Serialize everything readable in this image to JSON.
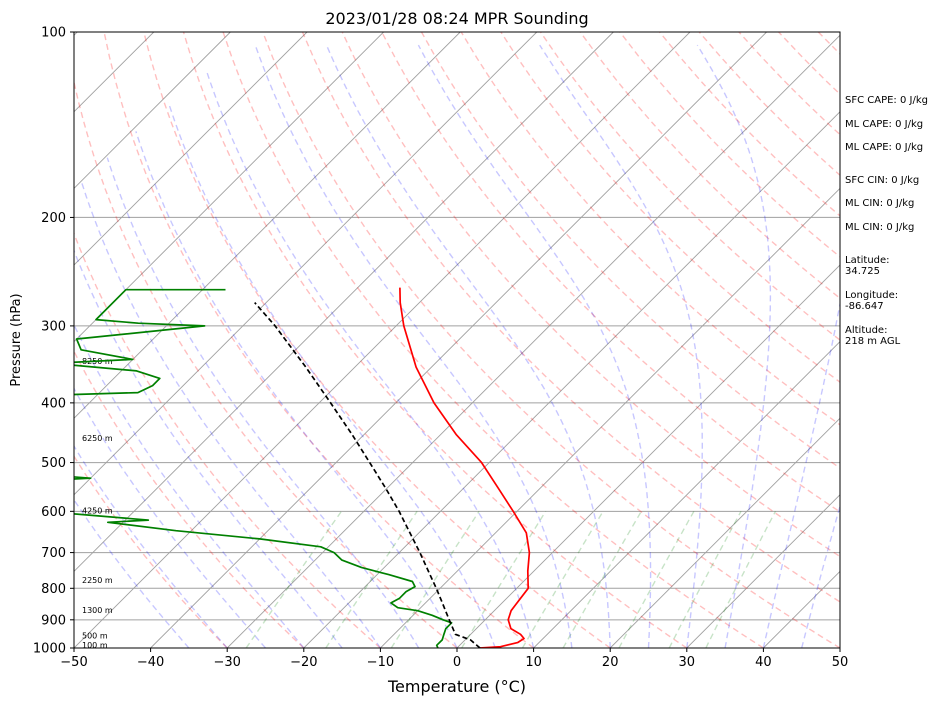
{
  "chart_data": {
    "type": "line",
    "title": "2023/01/28 08:24 MPR Sounding",
    "xlabel": "Temperature (°C)",
    "ylabel": "Pressure (hPa)",
    "xlim": [
      -50,
      50
    ],
    "ylim": [
      1000,
      100
    ],
    "y_scale": "log",
    "grid": true,
    "x_ticks": [
      -50,
      -40,
      -30,
      -20,
      -10,
      0,
      10,
      20,
      30,
      40,
      50
    ],
    "x_tick_labels": [
      "−50",
      "−40",
      "−30",
      "−20",
      "−10",
      "0",
      "10",
      "20",
      "30",
      "40",
      "50"
    ],
    "y_ticks": [
      100,
      200,
      300,
      400,
      500,
      600,
      700,
      800,
      900,
      1000
    ],
    "y_tick_labels": [
      "100",
      "200",
      "300",
      "400",
      "500",
      "600",
      "700",
      "800",
      "900",
      "1000"
    ],
    "series": [
      {
        "role": "temperature",
        "color": "#ff0000",
        "points": [
          [
            1000,
            3.0
          ],
          [
            995,
            5.5
          ],
          [
            980,
            7.2
          ],
          [
            965,
            7.5
          ],
          [
            950,
            6.5
          ],
          [
            930,
            4.5
          ],
          [
            900,
            3.0
          ],
          [
            870,
            2.2
          ],
          [
            850,
            2.0
          ],
          [
            800,
            1.5
          ],
          [
            750,
            -0.8
          ],
          [
            700,
            -3.0
          ],
          [
            650,
            -6.0
          ],
          [
            600,
            -10.5
          ],
          [
            550,
            -15.5
          ],
          [
            500,
            -21.0
          ],
          [
            450,
            -28.0
          ],
          [
            400,
            -35.0
          ],
          [
            350,
            -42.0
          ],
          [
            300,
            -49.0
          ],
          [
            275,
            -52.5
          ],
          [
            260,
            -54.5
          ]
        ]
      },
      {
        "role": "dewpoint",
        "color": "#008000",
        "points": [
          [
            1000,
            -2.5
          ],
          [
            990,
            -3.0
          ],
          [
            970,
            -3.0
          ],
          [
            950,
            -3.5
          ],
          [
            930,
            -4.0
          ],
          [
            910,
            -4.0
          ],
          [
            900,
            -5.5
          ],
          [
            885,
            -7.5
          ],
          [
            870,
            -10.0
          ],
          [
            860,
            -13.0
          ],
          [
            845,
            -14.5
          ],
          [
            830,
            -14.0
          ],
          [
            810,
            -14.0
          ],
          [
            795,
            -13.5
          ],
          [
            780,
            -14.5
          ],
          [
            760,
            -18.5
          ],
          [
            740,
            -23.0
          ],
          [
            720,
            -26.5
          ],
          [
            700,
            -28.5
          ],
          [
            685,
            -31.0
          ],
          [
            665,
            -40.0
          ],
          [
            645,
            -52.0
          ],
          [
            625,
            -62.0
          ],
          [
            620,
            -57.0
          ],
          [
            605,
            -68.0
          ],
          [
            580,
            -78.0
          ],
          [
            560,
            -90.0
          ],
          [
            545,
            -90.0
          ],
          [
            530,
            -70.0
          ],
          [
            515,
            -84.0
          ],
          [
            510,
            -90.0
          ],
          [
            390,
            -90.0
          ],
          [
            385,
            -75.0
          ],
          [
            375,
            -74.0
          ],
          [
            365,
            -74.0
          ],
          [
            355,
            -78.0
          ],
          [
            345,
            -90.0
          ],
          [
            340,
            -80.0
          ],
          [
            328,
            -88.0
          ],
          [
            315,
            -90.0
          ],
          [
            300,
            -75.0
          ],
          [
            297,
            -84.0
          ],
          [
            293,
            -90.0
          ],
          [
            262,
            -90.0
          ],
          [
            262,
            -77.0
          ]
        ]
      },
      {
        "role": "parcel",
        "color": "#000000",
        "style": "dashed",
        "points": [
          [
            1000,
            3.0
          ],
          [
            970,
            0.7
          ],
          [
            950,
            -2.0
          ],
          [
            900,
            -4.7
          ],
          [
            850,
            -7.5
          ],
          [
            800,
            -10.5
          ],
          [
            750,
            -13.8
          ],
          [
            700,
            -17.3
          ],
          [
            650,
            -21.2
          ],
          [
            600,
            -25.4
          ],
          [
            550,
            -30.2
          ],
          [
            500,
            -35.6
          ],
          [
            450,
            -41.6
          ],
          [
            400,
            -48.5
          ],
          [
            350,
            -56.4
          ],
          [
            300,
            -65.8
          ],
          [
            275,
            -71.5
          ]
        ]
      }
    ],
    "height_labels": [
      {
        "p": 989,
        "text": "100 m"
      },
      {
        "p": 955,
        "text": "500 m"
      },
      {
        "p": 868,
        "text": "1300 m"
      },
      {
        "p": 776,
        "text": "2250 m"
      },
      {
        "p": 598,
        "text": "4250 m"
      },
      {
        "p": 456,
        "text": "6250 m"
      },
      {
        "p": 342,
        "text": "8250 m"
      }
    ]
  },
  "indices": [
    "SFC CAPE: 0 J/kg",
    "ML CAPE: 0 J/kg",
    "ML CAPE: 0 J/kg",
    "SFC CIN: 0 J/kg",
    "ML CIN: 0 J/kg",
    "ML CIN: 0 J/kg"
  ],
  "location": {
    "latitude_label": "Latitude:",
    "latitude": "34.725",
    "longitude_label": "Longitude:",
    "longitude": "-86.647",
    "altitude_label": "Altitude:",
    "altitude": "218 m AGL"
  },
  "colors": {
    "dry_adiabat": "#ff0000",
    "moist_adiabat": "#0000ff",
    "mixing_ratio": "#008000",
    "isotherm": "#808080",
    "isobar": "#808080"
  }
}
